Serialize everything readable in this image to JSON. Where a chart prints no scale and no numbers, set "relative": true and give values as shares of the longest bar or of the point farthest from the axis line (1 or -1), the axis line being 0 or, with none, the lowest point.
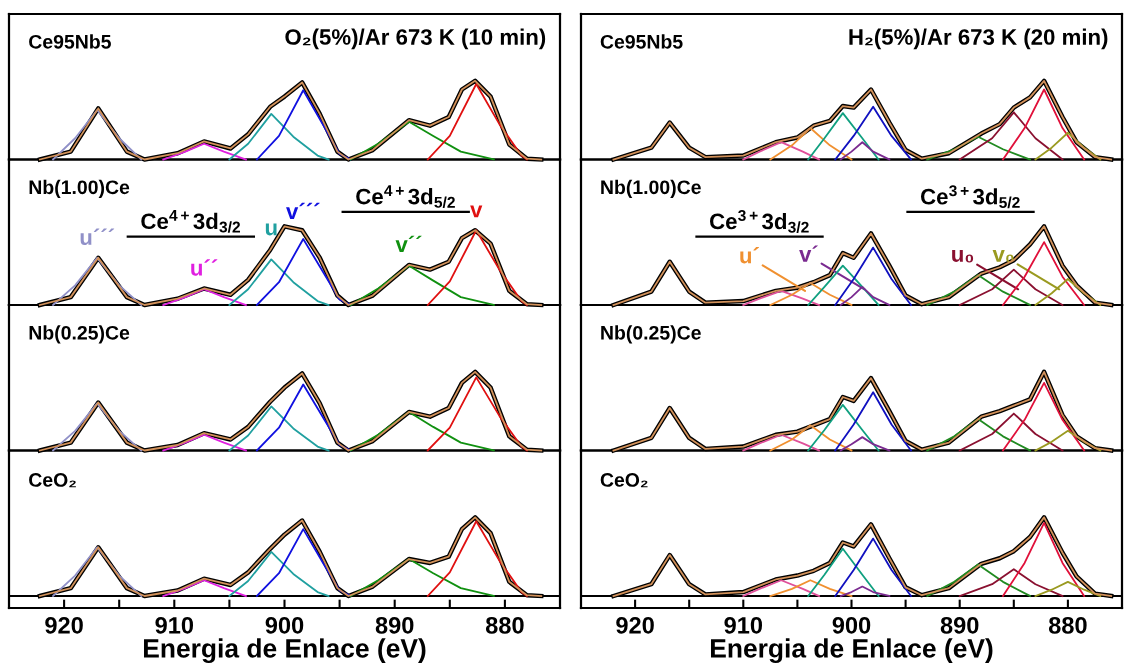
{
  "chart_data": [
    {
      "type": "line",
      "relative": true,
      "title": "Ce95Nb5",
      "subtitle": "O₂(5%)/Ar 673 K (10 min)",
      "xlim": [
        925,
        875
      ],
      "tick_labels": false,
      "series": [
        {
          "color": "#000000",
          "x": [
            922.2,
            919.4,
            916.9,
            914.3,
            912.7,
            909.7,
            907.3,
            904.9,
            903.3,
            901.3,
            900,
            898.4,
            896.8,
            895.2,
            894.2,
            892,
            888.7,
            886.8,
            885.1,
            883.9,
            882.7,
            881.3,
            879.6,
            878,
            876.7
          ],
          "values": [
            0,
            0.1,
            0.65,
            0.1,
            0,
            0.08,
            0.23,
            0.14,
            0.32,
            0.67,
            0.8,
            0.98,
            0.58,
            0.1,
            0,
            0.12,
            0.5,
            0.43,
            0.54,
            0.89,
            1.0,
            0.8,
            0.19,
            0.01,
            0
          ]
        },
        {
          "color": "#d2915a",
          "x": [
            922.2,
            919.4,
            916.9,
            914.3,
            912.7,
            909.7,
            907.3,
            904.9,
            903.3,
            901.3,
            900,
            898.4,
            896.8,
            895.2,
            894.2,
            892,
            888.7,
            886.8,
            885.1,
            883.9,
            882.7,
            881.3,
            879.6,
            878,
            876.7
          ],
          "values": [
            0,
            0.1,
            0.65,
            0.1,
            0,
            0.08,
            0.23,
            0.14,
            0.32,
            0.67,
            0.8,
            0.98,
            0.58,
            0.1,
            0,
            0.12,
            0.5,
            0.43,
            0.54,
            0.89,
            1.0,
            0.8,
            0.19,
            0.01,
            0
          ]
        },
        {
          "color": "#9090c8",
          "x": [
            921,
            919,
            917,
            915,
            913
          ],
          "values": [
            0,
            0.27,
            0.63,
            0.27,
            0
          ]
        },
        {
          "color": "#e020e0",
          "x": [
            911,
            909,
            907.3,
            905.5,
            903.5
          ],
          "values": [
            0,
            0.1,
            0.2,
            0.1,
            0
          ]
        },
        {
          "color": "#20a0a0",
          "x": [
            905,
            903.3,
            901.2,
            899.2,
            897,
            896
          ],
          "values": [
            0,
            0.2,
            0.58,
            0.29,
            0.05,
            0
          ]
        },
        {
          "color": "#1010e0",
          "x": [
            902.5,
            900.5,
            898.3,
            896.5,
            895,
            894
          ],
          "values": [
            0,
            0.3,
            0.88,
            0.44,
            0.07,
            0
          ]
        },
        {
          "color": "#109010",
          "x": [
            894,
            891.5,
            888.7,
            886.5,
            884,
            881
          ],
          "values": [
            0,
            0.2,
            0.48,
            0.3,
            0.1,
            0
          ]
        },
        {
          "color": "#e01010",
          "x": [
            887,
            885,
            882.6,
            880.5,
            878.5,
            878
          ],
          "values": [
            0,
            0.3,
            0.96,
            0.45,
            0.05,
            0
          ]
        }
      ]
    },
    {
      "type": "line",
      "relative": true,
      "title": "Nb(1.00)Ce",
      "xlim": [
        925,
        875
      ],
      "tick_labels": false,
      "annotations": [
        "Ce$^{4+}$3d$_{3/2}$",
        "Ce$^{4+}$3d$_{5/2}$",
        {
          "text": "u´´´",
          "x": 917,
          "y": 0.6
        },
        {
          "text": "u´´",
          "x": 907.3,
          "y": 0.2
        },
        {
          "text": "u",
          "x": 901.2,
          "y": 0.58
        },
        {
          "text": "v´´´",
          "x": 898.3,
          "y": 0.84
        },
        {
          "text": "v´´",
          "x": 888.7,
          "y": 0.5
        },
        {
          "text": "v",
          "x": 882.6,
          "y": 0.95
        }
      ],
      "series": [
        {
          "color": "#000000",
          "x": [
            922.2,
            919.4,
            916.9,
            914.3,
            912.7,
            909.7,
            907.3,
            904.9,
            903.3,
            901.3,
            900,
            898.4,
            896.8,
            895.2,
            894.2,
            892,
            888.7,
            886.8,
            885.1,
            883.9,
            882.7,
            881.3,
            879.6,
            878,
            876.7
          ],
          "values": [
            0,
            0.1,
            0.6,
            0.1,
            0,
            0.08,
            0.21,
            0.13,
            0.32,
            0.7,
            1.0,
            0.95,
            0.6,
            0.12,
            0,
            0.12,
            0.51,
            0.45,
            0.55,
            0.85,
            0.95,
            0.78,
            0.18,
            0.01,
            0
          ]
        },
        {
          "color": "#d2915a",
          "x": [
            922.2,
            919.4,
            916.9,
            914.3,
            912.7,
            909.7,
            907.3,
            904.9,
            903.3,
            901.3,
            900,
            898.4,
            896.8,
            895.2,
            894.2,
            892,
            888.7,
            886.8,
            885.1,
            883.9,
            882.7,
            881.3,
            879.6,
            878,
            876.7
          ],
          "values": [
            0,
            0.1,
            0.6,
            0.1,
            0,
            0.08,
            0.21,
            0.13,
            0.32,
            0.7,
            1.0,
            0.95,
            0.6,
            0.12,
            0,
            0.12,
            0.51,
            0.45,
            0.55,
            0.85,
            0.95,
            0.78,
            0.18,
            0.01,
            0
          ]
        },
        {
          "color": "#9090c8",
          "x": [
            921,
            919,
            917,
            915,
            913
          ],
          "values": [
            0,
            0.25,
            0.6,
            0.25,
            0
          ]
        },
        {
          "color": "#e020e0",
          "x": [
            911,
            909,
            907.3,
            905.5,
            903.5
          ],
          "values": [
            0,
            0.1,
            0.2,
            0.1,
            0
          ]
        },
        {
          "color": "#20a0a0",
          "x": [
            905,
            903.3,
            901.2,
            899.2,
            897,
            896
          ],
          "values": [
            0,
            0.2,
            0.58,
            0.29,
            0.05,
            0
          ]
        },
        {
          "color": "#1010e0",
          "x": [
            902.5,
            900.5,
            898.3,
            896.5,
            895,
            894
          ],
          "values": [
            0,
            0.29,
            0.84,
            0.42,
            0.07,
            0
          ]
        },
        {
          "color": "#109010",
          "x": [
            894,
            891.5,
            888.7,
            886.5,
            884,
            881
          ],
          "values": [
            0,
            0.21,
            0.5,
            0.31,
            0.1,
            0
          ]
        },
        {
          "color": "#e01010",
          "x": [
            887,
            885,
            882.6,
            880.5,
            878.5,
            878
          ],
          "values": [
            0,
            0.3,
            0.95,
            0.45,
            0.05,
            0
          ]
        }
      ]
    },
    {
      "type": "line",
      "relative": true,
      "title": "Nb(0.25)Ce",
      "xlim": [
        925,
        875
      ],
      "tick_labels": false,
      "series": [
        {
          "color": "#000000",
          "x": [
            922.2,
            919.4,
            916.9,
            914.3,
            912.7,
            909.7,
            907.3,
            904.9,
            903.3,
            901.3,
            900,
            898.4,
            896.8,
            895.2,
            894.2,
            892,
            888.7,
            886.8,
            885.1,
            883.9,
            882.7,
            881.3,
            879.6,
            878,
            876.7
          ],
          "values": [
            0,
            0.1,
            0.61,
            0.1,
            0,
            0.07,
            0.22,
            0.14,
            0.3,
            0.62,
            0.8,
            0.98,
            0.6,
            0.1,
            0,
            0.12,
            0.49,
            0.43,
            0.54,
            0.86,
            1.0,
            0.8,
            0.18,
            0.01,
            0
          ]
        },
        {
          "color": "#d2915a",
          "x": [
            922.2,
            919.4,
            916.9,
            914.3,
            912.7,
            909.7,
            907.3,
            904.9,
            903.3,
            901.3,
            900,
            898.4,
            896.8,
            895.2,
            894.2,
            892,
            888.7,
            886.8,
            885.1,
            883.9,
            882.7,
            881.3,
            879.6,
            878,
            876.7
          ],
          "values": [
            0,
            0.1,
            0.61,
            0.1,
            0,
            0.07,
            0.22,
            0.14,
            0.3,
            0.62,
            0.8,
            0.98,
            0.6,
            0.1,
            0,
            0.12,
            0.49,
            0.43,
            0.54,
            0.86,
            1.0,
            0.8,
            0.18,
            0.01,
            0
          ]
        },
        {
          "color": "#9090c8",
          "x": [
            921,
            919,
            917,
            915,
            913
          ],
          "values": [
            0,
            0.25,
            0.6,
            0.25,
            0
          ]
        },
        {
          "color": "#e020e0",
          "x": [
            911,
            909,
            907.3,
            905.5,
            903.5
          ],
          "values": [
            0,
            0.1,
            0.2,
            0.1,
            0
          ]
        },
        {
          "color": "#20a0a0",
          "x": [
            905,
            903.3,
            901.2,
            899.2,
            897,
            896
          ],
          "values": [
            0,
            0.19,
            0.56,
            0.28,
            0.05,
            0
          ]
        },
        {
          "color": "#1010e0",
          "x": [
            902.5,
            900.5,
            898.3,
            896.5,
            895,
            894
          ],
          "values": [
            0,
            0.29,
            0.84,
            0.42,
            0.07,
            0
          ]
        },
        {
          "color": "#109010",
          "x": [
            894,
            891.5,
            888.7,
            886.5,
            884,
            881
          ],
          "values": [
            0,
            0.2,
            0.49,
            0.3,
            0.1,
            0
          ]
        },
        {
          "color": "#e01010",
          "x": [
            887,
            885,
            882.6,
            880.5,
            878.5,
            878
          ],
          "values": [
            0,
            0.29,
            0.93,
            0.44,
            0.05,
            0
          ]
        }
      ]
    },
    {
      "type": "line",
      "relative": true,
      "title": "CeO₂",
      "xlabel": "Energia de Enlace (eV)",
      "xlim": [
        925,
        875
      ],
      "xticks": [
        920,
        {
          "value": 915,
          "label": null
        },
        910,
        {
          "value": 905,
          "label": null
        },
        900,
        {
          "value": 895,
          "label": null
        },
        890,
        {
          "value": 885,
          "label": null
        },
        880
      ],
      "tick_labels": "x",
      "series": [
        {
          "color": "#000000",
          "x": [
            922.2,
            919.4,
            916.9,
            914.3,
            912.7,
            909.7,
            907.3,
            904.9,
            903.3,
            901.3,
            900,
            898.4,
            896.8,
            895.2,
            894.2,
            892,
            888.7,
            886.8,
            885.1,
            883.9,
            882.7,
            881.3,
            879.6,
            878,
            876.7
          ],
          "values": [
            0,
            0.1,
            0.62,
            0.1,
            0,
            0.07,
            0.22,
            0.14,
            0.3,
            0.6,
            0.78,
            0.96,
            0.56,
            0.1,
            0,
            0.12,
            0.47,
            0.42,
            0.5,
            0.85,
            1.0,
            0.8,
            0.18,
            0.01,
            0
          ]
        },
        {
          "color": "#d2915a",
          "x": [
            922.2,
            919.4,
            916.9,
            914.3,
            912.7,
            909.7,
            907.3,
            904.9,
            903.3,
            901.3,
            900,
            898.4,
            896.8,
            895.2,
            894.2,
            892,
            888.7,
            886.8,
            885.1,
            883.9,
            882.7,
            881.3,
            879.6,
            878,
            876.7
          ],
          "values": [
            0,
            0.1,
            0.62,
            0.1,
            0,
            0.07,
            0.22,
            0.14,
            0.3,
            0.6,
            0.78,
            0.96,
            0.56,
            0.1,
            0,
            0.12,
            0.47,
            0.42,
            0.5,
            0.85,
            1.0,
            0.8,
            0.18,
            0.01,
            0
          ]
        },
        {
          "color": "#9090c8",
          "x": [
            921,
            919,
            917,
            915,
            913
          ],
          "values": [
            0,
            0.26,
            0.62,
            0.26,
            0
          ]
        },
        {
          "color": "#e020e0",
          "x": [
            911,
            909,
            907.3,
            905.5,
            903.5
          ],
          "values": [
            0,
            0.1,
            0.2,
            0.1,
            0
          ]
        },
        {
          "color": "#20a0a0",
          "x": [
            905,
            903.3,
            901.2,
            899.2,
            897,
            896
          ],
          "values": [
            0,
            0.19,
            0.56,
            0.28,
            0.05,
            0
          ]
        },
        {
          "color": "#1010e0",
          "x": [
            902.5,
            900.5,
            898.3,
            896.5,
            895,
            894
          ],
          "values": [
            0,
            0.29,
            0.85,
            0.42,
            0.07,
            0
          ]
        },
        {
          "color": "#109010",
          "x": [
            894,
            891.5,
            888.7,
            886.5,
            884,
            881
          ],
          "values": [
            0,
            0.2,
            0.47,
            0.29,
            0.1,
            0
          ]
        },
        {
          "color": "#e01010",
          "x": [
            887,
            885,
            882.6,
            880.5,
            878.5,
            878
          ],
          "values": [
            0,
            0.3,
            0.95,
            0.45,
            0.05,
            0
          ]
        }
      ]
    },
    {
      "type": "line",
      "relative": true,
      "title": "Ce95Nb5",
      "subtitle": "H₂(5%)/Ar 673 K (20 min)",
      "xlim": [
        925,
        875
      ],
      "tick_labels": false,
      "series": [
        {
          "color": "#000000",
          "x": [
            922,
            918.5,
            916.8,
            915,
            913.5,
            910,
            907,
            905,
            903.5,
            902,
            900.8,
            899.8,
            898.2,
            896.5,
            895,
            893.5,
            891,
            888,
            886.3,
            885,
            883.5,
            882.2,
            880.5,
            879.2,
            877.5,
            876
          ],
          "values": [
            0,
            0.15,
            0.47,
            0.15,
            0.03,
            0.05,
            0.22,
            0.28,
            0.43,
            0.49,
            0.68,
            0.66,
            0.89,
            0.47,
            0.12,
            0.01,
            0.08,
            0.33,
            0.45,
            0.66,
            0.79,
            1.0,
            0.54,
            0.22,
            0.03,
            0
          ]
        },
        {
          "color": "#d2915a",
          "x": [
            922,
            918.5,
            916.8,
            915,
            913.5,
            910,
            907,
            905,
            903.5,
            902,
            900.8,
            899.8,
            898.2,
            896.5,
            895,
            893.5,
            891,
            888,
            886.3,
            885,
            883.5,
            882.2,
            880.5,
            879.2,
            877.5,
            876
          ],
          "values": [
            0,
            0.15,
            0.47,
            0.15,
            0.03,
            0.05,
            0.22,
            0.28,
            0.43,
            0.49,
            0.68,
            0.66,
            0.89,
            0.47,
            0.12,
            0.01,
            0.08,
            0.33,
            0.45,
            0.66,
            0.79,
            1.0,
            0.54,
            0.22,
            0.03,
            0
          ]
        },
        {
          "color": "#e0509a",
          "x": [
            910,
            908.5,
            906.5,
            904.5,
            903
          ],
          "values": [
            0,
            0.1,
            0.22,
            0.1,
            0
          ]
        },
        {
          "color": "#f09030",
          "x": [
            907.5,
            905.5,
            903.8,
            902,
            900
          ],
          "values": [
            0,
            0.18,
            0.4,
            0.18,
            0
          ]
        },
        {
          "color": "#10a080",
          "x": [
            904,
            902.5,
            900.8,
            899,
            897.5
          ],
          "values": [
            0,
            0.27,
            0.59,
            0.27,
            0
          ]
        },
        {
          "color": "#7a2a90",
          "x": [
            901,
            900,
            899,
            898,
            896.5
          ],
          "values": [
            0,
            0.1,
            0.22,
            0.1,
            0
          ]
        },
        {
          "color": "#1010c0",
          "x": [
            901.5,
            899.8,
            898,
            896.3,
            894.5
          ],
          "values": [
            0,
            0.3,
            0.67,
            0.3,
            0
          ]
        },
        {
          "color": "#208a20",
          "x": [
            893,
            890.5,
            888.3,
            886,
            883.5
          ],
          "values": [
            0,
            0.13,
            0.29,
            0.13,
            0
          ]
        },
        {
          "color": "#8a1030",
          "x": [
            890,
            887,
            885,
            883,
            880.5
          ],
          "values": [
            0,
            0.27,
            0.6,
            0.27,
            0
          ]
        },
        {
          "color": "#e0103a",
          "x": [
            886,
            884,
            882.2,
            880.5,
            878.5
          ],
          "values": [
            0,
            0.4,
            0.89,
            0.4,
            0
          ]
        },
        {
          "color": "#9a9a20",
          "x": [
            883,
            881.5,
            880,
            878.5,
            877
          ],
          "values": [
            0,
            0.15,
            0.34,
            0.15,
            0
          ]
        }
      ]
    },
    {
      "type": "line",
      "relative": true,
      "title": "Nb(1.00)Ce",
      "xlim": [
        925,
        875
      ],
      "tick_labels": false,
      "annotations": [
        "Ce$^{3+}$3d$_{3/2}$",
        "Ce$^{3+}$3d$_{5/2}$",
        {
          "text": "u´",
          "x": 904.3,
          "y": 0.18
        },
        {
          "text": "v´",
          "x": 898.8,
          "y": 0.2
        },
        {
          "text": "u₀",
          "x": 884.6,
          "y": 0.2
        },
        {
          "text": "v₀",
          "x": 880.8,
          "y": 0.2
        }
      ],
      "series": [
        {
          "color": "#000000",
          "x": [
            922,
            918.5,
            916.8,
            915,
            913.5,
            910,
            907,
            905,
            903.5,
            902,
            900.8,
            899.8,
            898.2,
            896.5,
            895,
            893.5,
            891,
            888,
            886.3,
            885,
            883.5,
            882.2,
            880.5,
            879.2,
            877.5,
            876
          ],
          "values": [
            0,
            0.17,
            0.55,
            0.17,
            0.03,
            0.05,
            0.18,
            0.22,
            0.29,
            0.38,
            0.66,
            0.6,
            0.91,
            0.5,
            0.12,
            0.01,
            0.1,
            0.4,
            0.48,
            0.57,
            0.77,
            1.0,
            0.5,
            0.25,
            0.03,
            0
          ]
        },
        {
          "color": "#d2915a",
          "x": [
            922,
            918.5,
            916.8,
            915,
            913.5,
            910,
            907,
            905,
            903.5,
            902,
            900.8,
            899.8,
            898.2,
            896.5,
            895,
            893.5,
            891,
            888,
            886.3,
            885,
            883.5,
            882.2,
            880.5,
            879.2,
            877.5,
            876
          ],
          "values": [
            0,
            0.17,
            0.55,
            0.17,
            0.03,
            0.05,
            0.18,
            0.22,
            0.29,
            0.38,
            0.66,
            0.6,
            0.91,
            0.5,
            0.12,
            0.01,
            0.1,
            0.4,
            0.48,
            0.57,
            0.77,
            1.0,
            0.5,
            0.25,
            0.03,
            0
          ]
        },
        {
          "color": "#e0509a",
          "x": [
            910,
            908.5,
            906.5,
            904.5,
            903
          ],
          "values": [
            0,
            0.08,
            0.18,
            0.08,
            0
          ]
        },
        {
          "color": "#f09030",
          "x": [
            907.5,
            905.5,
            903.8,
            902,
            900
          ],
          "values": [
            0,
            0.13,
            0.28,
            0.13,
            0
          ]
        },
        {
          "color": "#10a080",
          "x": [
            904,
            902.5,
            900.8,
            899,
            897.5
          ],
          "values": [
            0,
            0.23,
            0.5,
            0.23,
            0
          ]
        },
        {
          "color": "#7a2a90",
          "x": [
            901,
            900,
            899,
            898,
            896.5
          ],
          "values": [
            0,
            0.1,
            0.23,
            0.1,
            0
          ]
        },
        {
          "color": "#1010c0",
          "x": [
            901.5,
            899.8,
            898,
            896.3,
            894.5
          ],
          "values": [
            0,
            0.33,
            0.73,
            0.33,
            0
          ]
        },
        {
          "color": "#208a20",
          "x": [
            893,
            890.5,
            888.3,
            886,
            883.5
          ],
          "values": [
            0,
            0.17,
            0.38,
            0.17,
            0
          ]
        },
        {
          "color": "#8a1030",
          "x": [
            890,
            887,
            885,
            883,
            880.5
          ],
          "values": [
            0,
            0.2,
            0.45,
            0.2,
            0
          ]
        },
        {
          "color": "#e0103a",
          "x": [
            886,
            884,
            882.2,
            880.5,
            878.5
          ],
          "values": [
            0,
            0.36,
            0.8,
            0.36,
            0
          ]
        },
        {
          "color": "#9a9a20",
          "x": [
            883,
            881.5,
            880,
            878.5,
            877
          ],
          "values": [
            0,
            0.15,
            0.33,
            0.15,
            0
          ]
        }
      ]
    },
    {
      "type": "line",
      "relative": true,
      "title": "Nb(0.25)Ce",
      "xlim": [
        925,
        875
      ],
      "tick_labels": false,
      "series": [
        {
          "color": "#000000",
          "x": [
            922,
            918.5,
            916.8,
            915,
            913.5,
            910,
            907,
            905,
            903.5,
            902,
            900.8,
            899.8,
            898.2,
            896.5,
            895,
            893.5,
            891,
            888,
            886.3,
            885,
            883.5,
            882.2,
            880.5,
            879.2,
            877.5,
            876
          ],
          "values": [
            0,
            0.16,
            0.54,
            0.16,
            0.02,
            0.05,
            0.2,
            0.24,
            0.32,
            0.4,
            0.68,
            0.63,
            0.92,
            0.5,
            0.12,
            0.01,
            0.1,
            0.43,
            0.5,
            0.57,
            0.65,
            1.0,
            0.45,
            0.18,
            0.03,
            0
          ]
        },
        {
          "color": "#d2915a",
          "x": [
            922,
            918.5,
            916.8,
            915,
            913.5,
            910,
            907,
            905,
            903.5,
            902,
            900.8,
            899.8,
            898.2,
            896.5,
            895,
            893.5,
            891,
            888,
            886.3,
            885,
            883.5,
            882.2,
            880.5,
            879.2,
            877.5,
            876
          ],
          "values": [
            0,
            0.16,
            0.54,
            0.16,
            0.02,
            0.05,
            0.2,
            0.24,
            0.32,
            0.4,
            0.68,
            0.63,
            0.92,
            0.5,
            0.12,
            0.01,
            0.1,
            0.43,
            0.5,
            0.57,
            0.65,
            1.0,
            0.45,
            0.18,
            0.03,
            0
          ]
        },
        {
          "color": "#e0509a",
          "x": [
            910,
            908.5,
            906.5,
            904.5,
            903
          ],
          "values": [
            0,
            0.09,
            0.2,
            0.09,
            0
          ]
        },
        {
          "color": "#f09030",
          "x": [
            907.5,
            905.5,
            903.8,
            902,
            900
          ],
          "values": [
            0,
            0.14,
            0.32,
            0.14,
            0
          ]
        },
        {
          "color": "#10a080",
          "x": [
            904,
            902.5,
            900.8,
            899,
            897.5
          ],
          "values": [
            0,
            0.26,
            0.58,
            0.26,
            0
          ]
        },
        {
          "color": "#7a2a90",
          "x": [
            901,
            900,
            899,
            898,
            896.5
          ],
          "values": [
            0,
            0.08,
            0.17,
            0.08,
            0
          ]
        },
        {
          "color": "#1010c0",
          "x": [
            901.5,
            899.8,
            898,
            896.3,
            894.5
          ],
          "values": [
            0,
            0.33,
            0.74,
            0.33,
            0
          ]
        },
        {
          "color": "#208a20",
          "x": [
            893,
            890.5,
            888.3,
            886,
            883.5
          ],
          "values": [
            0,
            0.18,
            0.4,
            0.18,
            0
          ]
        },
        {
          "color": "#8a1030",
          "x": [
            890,
            887,
            885,
            883,
            880.5
          ],
          "values": [
            0,
            0.21,
            0.47,
            0.21,
            0
          ]
        },
        {
          "color": "#e0103a",
          "x": [
            886,
            884,
            882.2,
            880.5,
            878.5
          ],
          "values": [
            0,
            0.39,
            0.86,
            0.39,
            0
          ]
        },
        {
          "color": "#9a9a20",
          "x": [
            883,
            881.5,
            880,
            878.5,
            877
          ],
          "values": [
            0,
            0.11,
            0.25,
            0.11,
            0
          ]
        }
      ]
    },
    {
      "type": "line",
      "relative": true,
      "title": "CeO₂",
      "xlabel": "Energia de Enlace (eV)",
      "xlim": [
        925,
        875
      ],
      "xticks": [
        920,
        {
          "value": 915,
          "label": null
        },
        910,
        {
          "value": 905,
          "label": null
        },
        900,
        {
          "value": 895,
          "label": null
        },
        890,
        {
          "value": 885,
          "label": null
        },
        880
      ],
      "tick_labels": "x",
      "series": [
        {
          "color": "#000000",
          "x": [
            922,
            918.5,
            916.8,
            915,
            913.5,
            910,
            907,
            905,
            903.5,
            902,
            900.8,
            899.8,
            898.2,
            896.5,
            895,
            893.5,
            891,
            888,
            886.3,
            885,
            883.5,
            882.2,
            880.5,
            879.2,
            877.5,
            876
          ],
          "values": [
            0,
            0.15,
            0.52,
            0.15,
            0.02,
            0.05,
            0.21,
            0.26,
            0.32,
            0.42,
            0.68,
            0.63,
            0.91,
            0.48,
            0.11,
            0.01,
            0.1,
            0.41,
            0.48,
            0.57,
            0.75,
            1.0,
            0.55,
            0.25,
            0.03,
            0
          ]
        },
        {
          "color": "#d2915a",
          "x": [
            922,
            918.5,
            916.8,
            915,
            913.5,
            910,
            907,
            905,
            903.5,
            902,
            900.8,
            899.8,
            898.2,
            896.5,
            895,
            893.5,
            891,
            888,
            886.3,
            885,
            883.5,
            882.2,
            880.5,
            879.2,
            877.5,
            876
          ],
          "values": [
            0,
            0.15,
            0.52,
            0.15,
            0.02,
            0.05,
            0.21,
            0.26,
            0.32,
            0.42,
            0.68,
            0.63,
            0.91,
            0.48,
            0.11,
            0.01,
            0.1,
            0.41,
            0.48,
            0.57,
            0.75,
            1.0,
            0.55,
            0.25,
            0.03,
            0
          ]
        },
        {
          "color": "#e0509a",
          "x": [
            910,
            908.5,
            906.5,
            904.5,
            903
          ],
          "values": [
            0,
            0.09,
            0.2,
            0.09,
            0
          ]
        },
        {
          "color": "#f09030",
          "x": [
            907.5,
            905.5,
            903.8,
            902,
            900
          ],
          "values": [
            0,
            0.09,
            0.2,
            0.09,
            0
          ]
        },
        {
          "color": "#10a080",
          "x": [
            904,
            902.5,
            900.8,
            899,
            897.5
          ],
          "values": [
            0,
            0.27,
            0.6,
            0.27,
            0
          ]
        },
        {
          "color": "#7a2a90",
          "x": [
            901,
            900,
            899,
            898,
            896.5
          ],
          "values": [
            0,
            0.05,
            0.12,
            0.05,
            0
          ]
        },
        {
          "color": "#1010c0",
          "x": [
            901.5,
            899.8,
            898,
            896.3,
            894.5
          ],
          "values": [
            0,
            0.33,
            0.73,
            0.33,
            0
          ]
        },
        {
          "color": "#208a20",
          "x": [
            893,
            890.5,
            888.3,
            886,
            883.5
          ],
          "values": [
            0,
            0.18,
            0.4,
            0.18,
            0
          ]
        },
        {
          "color": "#8a1030",
          "x": [
            890,
            887,
            885,
            883,
            880.5
          ],
          "values": [
            0,
            0.15,
            0.34,
            0.15,
            0
          ]
        },
        {
          "color": "#e0103a",
          "x": [
            886,
            884,
            882.2,
            880.5,
            878.5
          ],
          "values": [
            0,
            0.42,
            0.93,
            0.42,
            0
          ]
        },
        {
          "color": "#9a9a20",
          "x": [
            883,
            881.5,
            880,
            878.5,
            877
          ],
          "values": [
            0,
            0.08,
            0.18,
            0.08,
            0
          ]
        }
      ]
    }
  ]
}
